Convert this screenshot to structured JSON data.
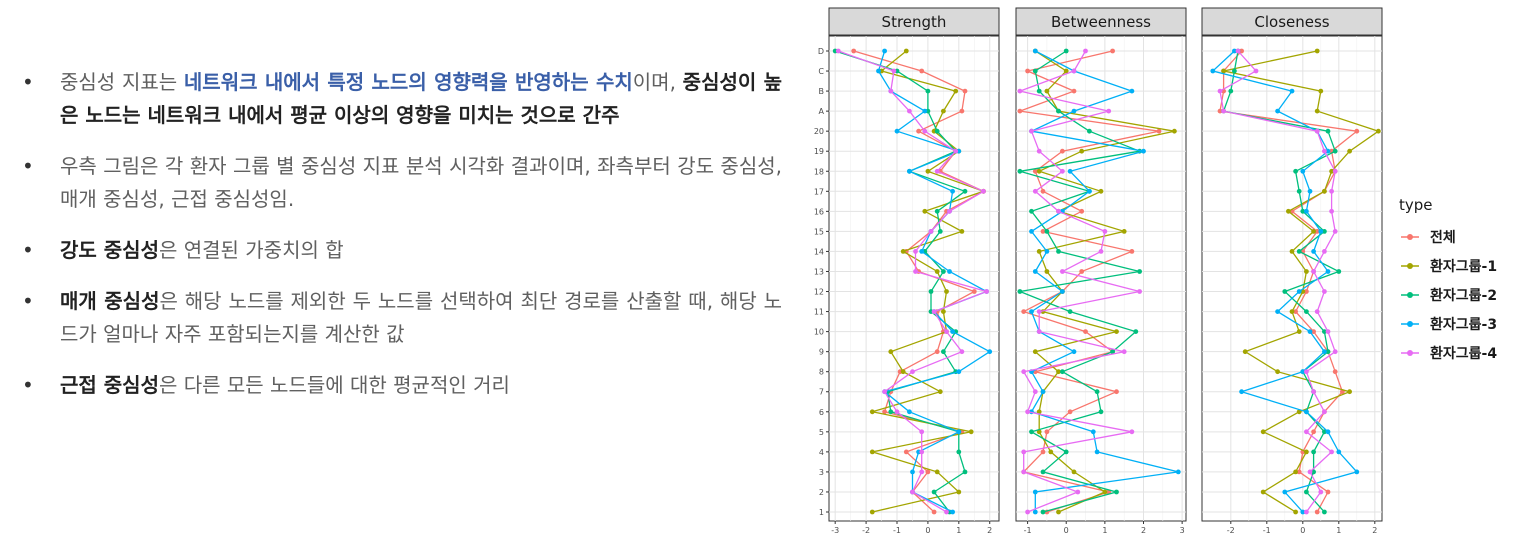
{
  "bullets": [
    {
      "segments": [
        {
          "text": "중심성 지표는 ",
          "style": "normal"
        },
        {
          "text": "네트워크 내에서 특정 노드의 영향력을 반영하는 수치",
          "style": "blue"
        },
        {
          "text": "이며, ",
          "style": "normal"
        },
        {
          "text": "중심성이 높은 노드는 네트워크 내에서 평균 이상의 영향을 미치는 것으로 간주",
          "style": "bold"
        }
      ]
    },
    {
      "segments": [
        {
          "text": "우측 그림은 각 환자 그룹 별 중심성 지표 분석 시각화 결과이며, 좌측부터 강도 중심성, 매개 중심성, 근접 중심성임.",
          "style": "normal"
        }
      ]
    },
    {
      "segments": [
        {
          "text": "강도 중심성",
          "style": "bold"
        },
        {
          "text": "은 연결된 가중치의 합",
          "style": "normal"
        }
      ]
    },
    {
      "segments": [
        {
          "text": "매개 중심성",
          "style": "bold"
        },
        {
          "text": "은 해당 노드를 제외한 두 노드를 선택하여 최단 경로를 산출할 때, 해당 노드가 얼마나 자주 포함되는지를 계산한 값",
          "style": "normal"
        }
      ]
    },
    {
      "segments": [
        {
          "text": "근접 중심성",
          "style": "bold"
        },
        {
          "text": "은 다른 모든 노드들에 대한 평균적인 거리",
          "style": "normal"
        }
      ]
    }
  ],
  "chart_data": {
    "type": "line",
    "nodes": [
      "1",
      "2",
      "3",
      "4",
      "5",
      "6",
      "7",
      "8",
      "9",
      "10",
      "11",
      "12",
      "13",
      "14",
      "15",
      "16",
      "17",
      "18",
      "19",
      "20",
      "A",
      "B",
      "C",
      "D"
    ],
    "legend": {
      "title": "type",
      "position": "right",
      "entries": [
        "전체",
        "환자그룹-1",
        "환자그룹-2",
        "환자그룹-3",
        "환자그룹-4"
      ]
    },
    "colors": {
      "전체": "#f8766d",
      "환자그룹-1": "#a3a500",
      "환자그룹-2": "#00bf7d",
      "환자그룹-3": "#00b0f6",
      "환자그룹-4": "#e76bf3"
    },
    "facets": [
      {
        "title": "Strength",
        "xlim": [
          -3.2,
          2.3
        ],
        "xticks": [
          -3,
          -2,
          -1,
          0,
          1,
          2
        ],
        "series": [
          {
            "name": "전체",
            "values": [
              0.2,
              -0.5,
              0.0,
              -0.7,
              1.1,
              -1.4,
              -1.2,
              -0.9,
              0.3,
              0.5,
              0.3,
              1.5,
              -0.3,
              -0.7,
              0.1,
              0.6,
              1.8,
              0.4,
              0.9,
              -0.3,
              1.1,
              1.2,
              -0.2,
              -2.4
            ]
          },
          {
            "name": "환자그룹-1",
            "values": [
              -1.8,
              1.0,
              0.3,
              -1.8,
              1.4,
              -1.8,
              0.4,
              -0.8,
              -1.2,
              0.6,
              0.5,
              0.6,
              0.3,
              -0.8,
              1.1,
              -0.1,
              1.8,
              0.0,
              1.0,
              0.2,
              0.5,
              0.9,
              -1.5,
              -0.7
            ]
          },
          {
            "name": "환자그룹-2",
            "values": [
              0.7,
              0.2,
              1.2,
              1.0,
              1.0,
              -1.2,
              -1.3,
              0.9,
              0.5,
              0.9,
              0.1,
              0.1,
              0.5,
              -0.1,
              0.4,
              0.3,
              1.2,
              -0.6,
              0.9,
              0.3,
              0.0,
              0.0,
              -1.0,
              -3.0
            ]
          },
          {
            "name": "환자그룹-3",
            "values": [
              0.8,
              -0.5,
              -0.5,
              -0.3,
              1.0,
              -0.6,
              -1.4,
              1.0,
              2.0,
              0.8,
              0.2,
              1.9,
              0.7,
              -0.2,
              0.1,
              0.7,
              0.8,
              -0.6,
              1.0,
              -1.0,
              -0.1,
              -1.2,
              -1.6,
              -1.4
            ]
          },
          {
            "name": "환자그룹-4",
            "values": [
              0.6,
              -0.5,
              -0.2,
              -0.2,
              -0.2,
              -1.0,
              -1.4,
              -0.5,
              1.1,
              0.6,
              0.2,
              1.9,
              -0.4,
              -0.4,
              0.1,
              0.7,
              1.8,
              0.3,
              0.9,
              -0.1,
              -0.6,
              -1.2,
              -1.1,
              -2.9
            ]
          }
        ]
      },
      {
        "title": "Betweenness",
        "xlim": [
          -1.3,
          3.1
        ],
        "xticks": [
          -1,
          0,
          1,
          2,
          3
        ],
        "series": [
          {
            "name": "전체",
            "values": [
              -0.5,
              1.1,
              -1.1,
              -0.6,
              -0.5,
              0.1,
              1.3,
              -0.8,
              1.2,
              0.5,
              -1.1,
              -0.1,
              0.4,
              1.7,
              -0.6,
              0.4,
              -0.6,
              -0.8,
              -0.1,
              2.4,
              -1.2,
              0.2,
              -1.0,
              1.2
            ]
          },
          {
            "name": "환자그룹-1",
            "values": [
              -0.2,
              1.0,
              0.2,
              -0.4,
              -0.7,
              -0.7,
              -0.6,
              -0.2,
              -0.8,
              1.3,
              -0.6,
              -0.1,
              -0.5,
              -0.7,
              1.5,
              -0.2,
              0.9,
              -0.7,
              0.4,
              2.8,
              -0.2,
              -0.5,
              0.0,
              -0.8
            ]
          },
          {
            "name": "환자그룹-2",
            "values": [
              -0.6,
              1.3,
              -0.6,
              0.0,
              -0.9,
              0.9,
              0.8,
              -0.1,
              1.2,
              1.8,
              0.1,
              -1.2,
              1.9,
              -0.2,
              -0.5,
              -0.9,
              0.6,
              -1.2,
              1.9,
              0.6,
              -0.2,
              -0.7,
              -0.8,
              0.0
            ]
          },
          {
            "name": "환자그룹-3",
            "values": [
              -0.8,
              -0.8,
              2.9,
              0.8,
              0.7,
              -0.9,
              -0.6,
              -0.9,
              0.2,
              -0.7,
              -0.9,
              -0.1,
              -0.8,
              -0.5,
              -0.9,
              -0.1,
              0.6,
              0.1,
              2.0,
              -0.9,
              0.2,
              1.7,
              0.2,
              -0.8
            ]
          },
          {
            "name": "환자그룹-4",
            "values": [
              -1.0,
              0.3,
              -1.1,
              -1.1,
              1.7,
              -1.0,
              -0.8,
              -1.1,
              1.5,
              -0.7,
              -0.7,
              1.9,
              -0.1,
              0.9,
              1.0,
              -0.2,
              -0.8,
              -0.1,
              -0.7,
              -0.9,
              1.1,
              -1.2,
              0.2,
              0.5
            ]
          }
        ]
      },
      {
        "title": "Closeness",
        "xlim": [
          -2.8,
          2.2
        ],
        "xticks": [
          -2,
          -1,
          0,
          1,
          2
        ],
        "series": [
          {
            "name": "전체",
            "values": [
              0.4,
              0.7,
              -0.1,
              0.0,
              0.3,
              0.6,
              1.1,
              0.9,
              0.7,
              0.3,
              -0.2,
              0.1,
              0.3,
              0.0,
              0.4,
              -0.3,
              0.6,
              0.9,
              0.8,
              1.5,
              -2.3,
              -2.2,
              -2.2,
              -1.7
            ]
          },
          {
            "name": "환자그룹-1",
            "values": [
              -0.2,
              -1.1,
              -0.2,
              0.1,
              -1.1,
              -0.1,
              1.3,
              -0.7,
              -1.6,
              -0.1,
              -0.3,
              0.0,
              0.1,
              -0.3,
              0.3,
              -0.4,
              0.6,
              0.8,
              1.3,
              2.1,
              0.4,
              0.5,
              -2.2,
              0.4
            ]
          },
          {
            "name": "환자그룹-2",
            "values": [
              0.6,
              0.1,
              0.3,
              0.3,
              0.6,
              0.1,
              0.3,
              0.0,
              0.7,
              0.6,
              0.1,
              -0.5,
              1.0,
              -0.1,
              0.6,
              0.0,
              -0.1,
              -0.2,
              0.9,
              0.7,
              -2.2,
              -2.0,
              -1.9,
              -1.8
            ]
          },
          {
            "name": "환자그룹-3",
            "values": [
              0.0,
              -0.5,
              1.5,
              1.0,
              0.7,
              0.1,
              -1.7,
              0.0,
              0.6,
              0.2,
              -0.7,
              -0.1,
              0.7,
              0.3,
              0.5,
              0.1,
              0.2,
              0.0,
              0.7,
              0.4,
              -0.7,
              -0.3,
              -2.5,
              -1.9
            ]
          },
          {
            "name": "환자그룹-4",
            "values": [
              0.1,
              0.5,
              0.2,
              0.8,
              0.1,
              0.6,
              0.3,
              0.1,
              0.9,
              0.7,
              0.4,
              0.6,
              0.3,
              0.6,
              0.9,
              0.8,
              0.8,
              0.9,
              0.6,
              0.4,
              -2.2,
              -2.3,
              -1.3,
              -1.8
            ]
          }
        ]
      }
    ]
  }
}
